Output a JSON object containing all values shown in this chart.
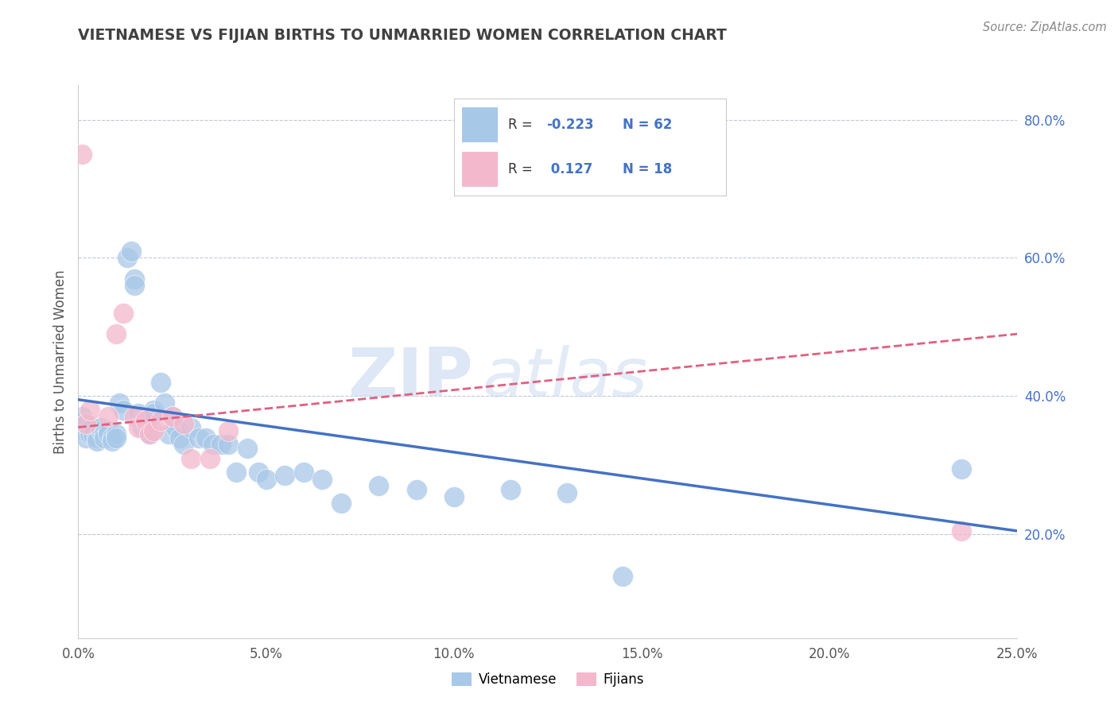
{
  "title": "VIETNAMESE VS FIJIAN BIRTHS TO UNMARRIED WOMEN CORRELATION CHART",
  "source": "Source: ZipAtlas.com",
  "ylabel": "Births to Unmarried Women",
  "xlim": [
    0.0,
    0.25
  ],
  "ylim": [
    0.05,
    0.85
  ],
  "yticks": [
    0.2,
    0.4,
    0.6,
    0.8
  ],
  "ytick_labels": [
    "20.0%",
    "40.0%",
    "60.0%",
    "80.0%"
  ],
  "xticks": [
    0.0,
    0.05,
    0.1,
    0.15,
    0.2,
    0.25
  ],
  "xtick_labels": [
    "0.0%",
    "5.0%",
    "10.0%",
    "15.0%",
    "20.0%",
    "25.0%"
  ],
  "blue_color": "#a8c8e8",
  "pink_color": "#f4b8cc",
  "blue_line_color": "#4472c4",
  "pink_line_color": "#e06080",
  "axis_color": "#4472c4",
  "title_color": "#404040",
  "watermark_zip": "ZIP",
  "watermark_atlas": "atlas",
  "vietnamese_x": [
    0.001,
    0.001,
    0.002,
    0.002,
    0.002,
    0.003,
    0.003,
    0.003,
    0.004,
    0.004,
    0.005,
    0.005,
    0.006,
    0.006,
    0.007,
    0.007,
    0.008,
    0.008,
    0.009,
    0.009,
    0.01,
    0.01,
    0.011,
    0.012,
    0.013,
    0.014,
    0.015,
    0.015,
    0.016,
    0.017,
    0.018,
    0.019,
    0.02,
    0.02,
    0.022,
    0.023,
    0.024,
    0.025,
    0.026,
    0.027,
    0.028,
    0.03,
    0.032,
    0.034,
    0.036,
    0.038,
    0.04,
    0.042,
    0.045,
    0.048,
    0.05,
    0.055,
    0.06,
    0.065,
    0.07,
    0.08,
    0.09,
    0.1,
    0.115,
    0.13,
    0.145,
    0.235
  ],
  "vietnamese_y": [
    0.36,
    0.37,
    0.35,
    0.36,
    0.34,
    0.35,
    0.355,
    0.345,
    0.355,
    0.345,
    0.34,
    0.335,
    0.35,
    0.355,
    0.345,
    0.34,
    0.35,
    0.345,
    0.34,
    0.335,
    0.345,
    0.34,
    0.39,
    0.38,
    0.6,
    0.61,
    0.57,
    0.56,
    0.375,
    0.355,
    0.36,
    0.345,
    0.38,
    0.375,
    0.42,
    0.39,
    0.345,
    0.37,
    0.355,
    0.34,
    0.33,
    0.355,
    0.34,
    0.34,
    0.33,
    0.33,
    0.33,
    0.29,
    0.325,
    0.29,
    0.28,
    0.285,
    0.29,
    0.28,
    0.245,
    0.27,
    0.265,
    0.255,
    0.265,
    0.26,
    0.14,
    0.295
  ],
  "fijian_x": [
    0.001,
    0.002,
    0.003,
    0.008,
    0.01,
    0.012,
    0.015,
    0.016,
    0.018,
    0.019,
    0.02,
    0.022,
    0.025,
    0.028,
    0.03,
    0.035,
    0.04,
    0.235
  ],
  "fijian_y": [
    0.75,
    0.36,
    0.38,
    0.37,
    0.49,
    0.52,
    0.37,
    0.355,
    0.365,
    0.345,
    0.35,
    0.365,
    0.37,
    0.36,
    0.31,
    0.31,
    0.35,
    0.205
  ],
  "blue_trend": [
    0.0,
    0.25,
    0.395,
    0.205
  ],
  "pink_trend": [
    0.0,
    0.25,
    0.355,
    0.49
  ]
}
